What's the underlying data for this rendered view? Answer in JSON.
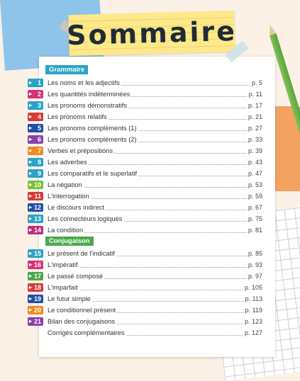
{
  "title": "Sommaire",
  "sections": [
    {
      "name": "Grammaire",
      "color": "#29a3c7",
      "items": [
        {
          "num": "1",
          "label": "Les noms et les adjectifs",
          "page": "p. 5",
          "color": "#29a3c7"
        },
        {
          "num": "2",
          "label": "Les quantités indéterminées",
          "page": "p. 11",
          "color": "#d6307a"
        },
        {
          "num": "3",
          "label": "Les pronoms démonstratifs",
          "page": "p. 17",
          "color": "#29a3c7"
        },
        {
          "num": "4",
          "label": "Les pronoms relatifs",
          "page": "p. 21",
          "color": "#d63a3a"
        },
        {
          "num": "5",
          "label": "Les pronoms compléments (1)",
          "page": "p. 27",
          "color": "#1f4fa8"
        },
        {
          "num": "6",
          "label": "Les pronoms compléments (2)",
          "page": "p. 33",
          "color": "#8a3fb0"
        },
        {
          "num": "7",
          "label": "Verbes et prépositions",
          "page": "p. 39",
          "color": "#f08a24"
        },
        {
          "num": "8",
          "label": "Les adverbes",
          "page": "p. 43",
          "color": "#29a3c7"
        },
        {
          "num": "9",
          "label": "Les comparatifs et le superlatif",
          "page": "p. 47",
          "color": "#29a3c7"
        },
        {
          "num": "10",
          "label": "La négation",
          "page": "p. 53",
          "color": "#7cbf3a"
        },
        {
          "num": "11",
          "label": "L'interrogation",
          "page": "p. 59",
          "color": "#d63a3a"
        },
        {
          "num": "12",
          "label": "Le discours indirect",
          "page": "p. 67",
          "color": "#1f4fa8"
        },
        {
          "num": "13",
          "label": "Les connecteurs logiques",
          "page": "p. 75",
          "color": "#29a3c7"
        },
        {
          "num": "14",
          "label": "La condition",
          "page": "p. 81",
          "color": "#c0307a"
        }
      ]
    },
    {
      "name": "Conjugaison",
      "color": "#4aa84a",
      "items": [
        {
          "num": "15",
          "label": "Le présent de l'indicatif",
          "page": "p. 85",
          "color": "#29a3c7"
        },
        {
          "num": "16",
          "label": "L'impératif",
          "page": "p. 93",
          "color": "#d6307a"
        },
        {
          "num": "17",
          "label": "Le passé composé",
          "page": "p. 97",
          "color": "#4aa84a"
        },
        {
          "num": "18",
          "label": "L'imparfait",
          "page": "p. 105",
          "color": "#d63a3a"
        },
        {
          "num": "19",
          "label": "Le futur simple",
          "page": "p. 113",
          "color": "#1f4fa8"
        },
        {
          "num": "20",
          "label": "Le conditionnel présent",
          "page": "p. 119",
          "color": "#f08a24"
        },
        {
          "num": "21",
          "label": "Bilan des conjugaisons",
          "page": "p. 123",
          "color": "#8a3fb0"
        }
      ]
    }
  ],
  "footer_item": {
    "label": "Corrigés complémentaires",
    "page": "p. 127"
  }
}
